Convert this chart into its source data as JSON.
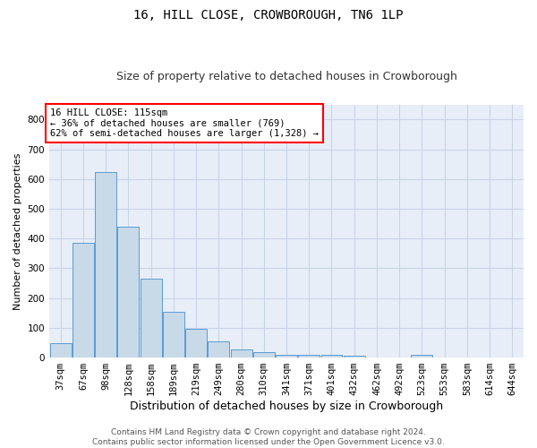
{
  "title": "16, HILL CLOSE, CROWBOROUGH, TN6 1LP",
  "subtitle": "Size of property relative to detached houses in Crowborough",
  "xlabel": "Distribution of detached houses by size in Crowborough",
  "ylabel": "Number of detached properties",
  "categories": [
    "37sqm",
    "67sqm",
    "98sqm",
    "128sqm",
    "158sqm",
    "189sqm",
    "219sqm",
    "249sqm",
    "280sqm",
    "310sqm",
    "341sqm",
    "371sqm",
    "401sqm",
    "432sqm",
    "462sqm",
    "492sqm",
    "523sqm",
    "553sqm",
    "583sqm",
    "614sqm",
    "644sqm"
  ],
  "values": [
    47,
    385,
    625,
    440,
    265,
    155,
    97,
    53,
    28,
    18,
    10,
    10,
    10,
    5,
    0,
    0,
    8,
    0,
    0,
    0,
    0
  ],
  "bar_color": "#c8d9e8",
  "bar_edge_color": "#5b9bd5",
  "annotation_text": "16 HILL CLOSE: 115sqm\n← 36% of detached houses are smaller (769)\n62% of semi-detached houses are larger (1,328) →",
  "annotation_box_color": "white",
  "annotation_box_edge_color": "red",
  "ylim": [
    0,
    850
  ],
  "yticks": [
    0,
    100,
    200,
    300,
    400,
    500,
    600,
    700,
    800
  ],
  "grid_color": "#c8d4e8",
  "footer1": "Contains HM Land Registry data © Crown copyright and database right 2024.",
  "footer2": "Contains public sector information licensed under the Open Government Licence v3.0.",
  "background_color": "#e8eef8",
  "title_fontsize": 10,
  "subtitle_fontsize": 9,
  "xlabel_fontsize": 9,
  "ylabel_fontsize": 8,
  "tick_fontsize": 7.5,
  "annotation_fontsize": 7.5,
  "footer_fontsize": 6.5
}
